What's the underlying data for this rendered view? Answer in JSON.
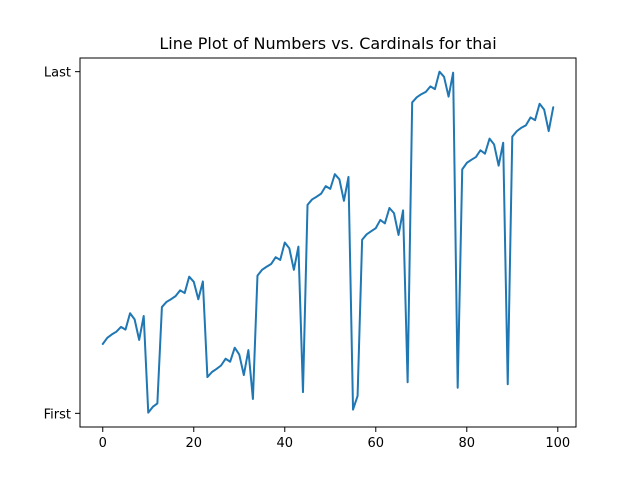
{
  "chart_data": {
    "type": "line",
    "title": "Line Plot of Numbers vs. Cardinals for thai",
    "xlabel": "",
    "ylabel": "",
    "xlim": [
      -5,
      104
    ],
    "ylim": [
      -0.04,
      1.04
    ],
    "x_ticks": [
      0,
      20,
      40,
      60,
      80,
      100
    ],
    "y_ticks": [
      {
        "value": 0,
        "label": "First"
      },
      {
        "value": 1,
        "label": "Last"
      }
    ],
    "grid": false,
    "series": [
      {
        "color": "#1f77b4",
        "x": [
          0,
          1,
          2,
          3,
          4,
          5,
          6,
          7,
          8,
          9,
          10,
          11,
          12,
          13,
          14,
          15,
          16,
          17,
          18,
          19,
          20,
          21,
          22,
          23,
          24,
          25,
          26,
          27,
          28,
          29,
          30,
          31,
          32,
          33,
          34,
          35,
          36,
          37,
          38,
          39,
          40,
          41,
          42,
          43,
          44,
          45,
          46,
          47,
          48,
          49,
          50,
          51,
          52,
          53,
          54,
          55,
          56,
          57,
          58,
          59,
          60,
          61,
          62,
          63,
          64,
          65,
          66,
          67,
          68,
          69,
          70,
          71,
          72,
          73,
          74,
          75,
          76,
          77,
          78,
          79,
          80,
          81,
          82,
          83,
          84,
          85,
          86,
          87,
          88,
          89,
          90,
          91,
          92,
          93,
          94,
          95,
          96,
          97,
          98,
          99
        ],
        "y": [
          0.203,
          0.221,
          0.231,
          0.239,
          0.253,
          0.245,
          0.293,
          0.275,
          0.215,
          0.285,
          0.002,
          0.019,
          0.029,
          0.311,
          0.326,
          0.334,
          0.343,
          0.36,
          0.352,
          0.4,
          0.385,
          0.334,
          0.386,
          0.106,
          0.121,
          0.13,
          0.14,
          0.16,
          0.151,
          0.192,
          0.172,
          0.112,
          0.185,
          0.042,
          0.403,
          0.42,
          0.429,
          0.437,
          0.457,
          0.449,
          0.5,
          0.483,
          0.42,
          0.488,
          0.062,
          0.61,
          0.626,
          0.634,
          0.643,
          0.665,
          0.657,
          0.7,
          0.685,
          0.622,
          0.692,
          0.011,
          0.051,
          0.508,
          0.524,
          0.533,
          0.542,
          0.566,
          0.556,
          0.601,
          0.586,
          0.522,
          0.594,
          0.091,
          0.91,
          0.925,
          0.934,
          0.941,
          0.957,
          0.949,
          1.0,
          0.985,
          0.927,
          0.997,
          0.075,
          0.714,
          0.733,
          0.742,
          0.75,
          0.77,
          0.76,
          0.804,
          0.787,
          0.725,
          0.792,
          0.085,
          0.81,
          0.826,
          0.836,
          0.843,
          0.866,
          0.858,
          0.906,
          0.889,
          0.826,
          0.896
        ]
      }
    ]
  }
}
